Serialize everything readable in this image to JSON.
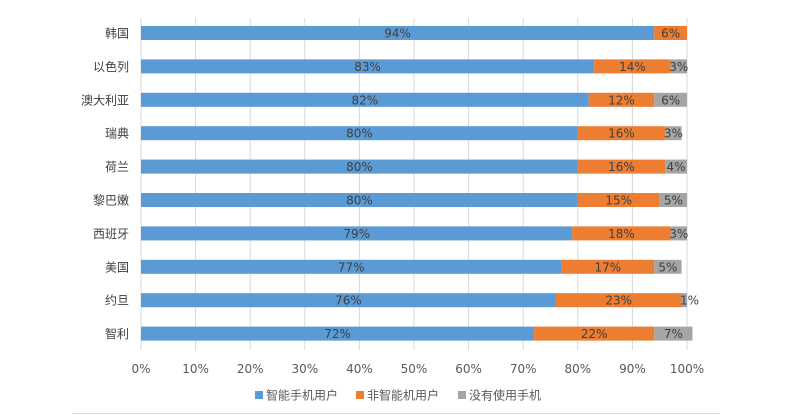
{
  "chart_data": {
    "type": "bar",
    "orientation": "horizontal",
    "stacked": true,
    "categories": [
      "韩国",
      "以色列",
      "澳大利亚",
      "瑞典",
      "荷兰",
      "黎巴嫩",
      "西班牙",
      "美国",
      "约旦",
      "智利"
    ],
    "series": [
      {
        "name": "智能手机用户",
        "color": "#5b9bd5",
        "values": [
          94,
          83,
          82,
          80,
          80,
          80,
          79,
          77,
          76,
          72
        ]
      },
      {
        "name": "非智能机用户",
        "color": "#ed7d31",
        "values": [
          6,
          14,
          12,
          16,
          16,
          15,
          18,
          17,
          23,
          22
        ]
      },
      {
        "name": "没有使用手机",
        "color": "#a5a5a5",
        "values": [
          0,
          3,
          6,
          3,
          4,
          5,
          3,
          5,
          1,
          7
        ]
      }
    ],
    "data_labels": [
      [
        "94%",
        "83%",
        "82%",
        "80%",
        "80%",
        "80%",
        "79%",
        "77%",
        "76%",
        "72%"
      ],
      [
        "6%",
        "14%",
        "12%",
        "16%",
        "16%",
        "15%",
        "18%",
        "17%",
        "23%",
        "22%"
      ],
      [
        "",
        "3%",
        "6%",
        "3%",
        "4%",
        "5%",
        "3%",
        "5%",
        "1%",
        "7%"
      ]
    ],
    "x_ticks": [
      "0%",
      "10%",
      "20%",
      "30%",
      "40%",
      "50%",
      "60%",
      "70%",
      "80%",
      "90%",
      "100%"
    ],
    "xlim": [
      0,
      100
    ],
    "title": "",
    "xlabel": "",
    "ylabel": "",
    "grid": true,
    "legend": "bottom"
  }
}
